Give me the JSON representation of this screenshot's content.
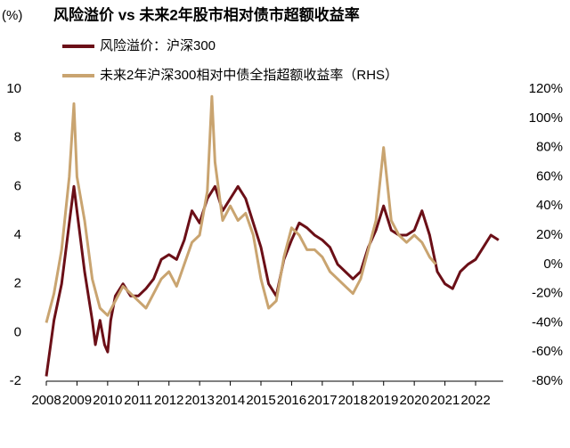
{
  "chart_data": {
    "type": "line",
    "title": "风险溢价 vs 未来2年股市相对债市超额收益率",
    "y_label": "(%)",
    "xlim": [
      2008,
      2022.9
    ],
    "xticks": [
      2008,
      2009,
      2010,
      2011,
      2012,
      2013,
      2014,
      2015,
      2016,
      2017,
      2018,
      2019,
      2020,
      2021,
      2022
    ],
    "ylim": [
      -2,
      10
    ],
    "yticks": [
      -2,
      0,
      2,
      4,
      6,
      8,
      10
    ],
    "y2lim": [
      -80,
      120
    ],
    "y2ticks": [
      {
        "value": -80,
        "label": "-80%"
      },
      {
        "value": -60,
        "label": "-60%"
      },
      {
        "value": -40,
        "label": "-40%"
      },
      {
        "value": -20,
        "label": "-20%"
      },
      {
        "value": 0,
        "label": "0%"
      },
      {
        "value": 20,
        "label": "20%"
      },
      {
        "value": 40,
        "label": "40%"
      },
      {
        "value": 60,
        "label": "60%"
      },
      {
        "value": 80,
        "label": "80%"
      },
      {
        "value": 100,
        "label": "100%"
      },
      {
        "value": 120,
        "label": "120%"
      }
    ],
    "series": [
      {
        "name": "风险溢价：沪深300",
        "color": "#6b0f17",
        "x": [
          2008.0,
          2008.25,
          2008.5,
          2008.75,
          2008.9,
          2009.0,
          2009.25,
          2009.5,
          2009.6,
          2009.75,
          2009.9,
          2010.0,
          2010.1,
          2010.25,
          2010.5,
          2010.75,
          2011.0,
          2011.25,
          2011.5,
          2011.75,
          2012.0,
          2012.25,
          2012.5,
          2012.75,
          2013.0,
          2013.25,
          2013.5,
          2013.75,
          2014.0,
          2014.25,
          2014.5,
          2014.75,
          2015.0,
          2015.25,
          2015.5,
          2015.75,
          2016.0,
          2016.25,
          2016.5,
          2016.75,
          2017.0,
          2017.25,
          2017.5,
          2017.75,
          2018.0,
          2018.25,
          2018.5,
          2018.75,
          2019.0,
          2019.25,
          2019.5,
          2019.75,
          2020.0,
          2020.25,
          2020.5,
          2020.75,
          2021.0,
          2021.25,
          2021.5,
          2021.75,
          2022.0,
          2022.25,
          2022.5,
          2022.75
        ],
        "values": [
          -1.8,
          0.5,
          2,
          4.5,
          6,
          5,
          2.5,
          0.5,
          -0.5,
          0.5,
          -0.5,
          -0.8,
          0.5,
          1.5,
          2,
          1.5,
          1.5,
          1.8,
          2.2,
          3,
          3.2,
          3,
          3.8,
          5,
          4.5,
          5.5,
          6,
          5,
          5.5,
          6,
          5.5,
          4.5,
          3.5,
          2,
          1.5,
          3,
          3.8,
          4.5,
          4.3,
          4,
          3.8,
          3.5,
          2.8,
          2.5,
          2.2,
          2.5,
          3.5,
          4.2,
          5.2,
          4.2,
          4,
          4,
          4.2,
          5,
          4,
          2.5,
          2,
          1.8,
          2.5,
          2.8,
          3,
          3.5,
          4,
          3.8
        ]
      },
      {
        "name": "未来2年沪深300相对中债全指超额收益率（RHS）",
        "color": "#c9a470",
        "axis": "y2",
        "x": [
          2008.0,
          2008.25,
          2008.5,
          2008.75,
          2008.9,
          2009.0,
          2009.25,
          2009.5,
          2009.75,
          2010.0,
          2010.25,
          2010.5,
          2010.75,
          2011.0,
          2011.25,
          2011.5,
          2011.75,
          2012.0,
          2012.25,
          2012.5,
          2012.75,
          2013.0,
          2013.25,
          2013.4,
          2013.5,
          2013.75,
          2014.0,
          2014.25,
          2014.5,
          2014.75,
          2015.0,
          2015.25,
          2015.5,
          2015.75,
          2016.0,
          2016.25,
          2016.5,
          2016.75,
          2017.0,
          2017.25,
          2017.5,
          2017.75,
          2018.0,
          2018.25,
          2018.5,
          2018.75,
          2019.0,
          2019.25,
          2019.5,
          2019.75,
          2020.0,
          2020.25,
          2020.5,
          2020.7
        ],
        "values": [
          -40,
          -20,
          10,
          60,
          110,
          60,
          30,
          -10,
          -30,
          -35,
          -25,
          -15,
          -20,
          -25,
          -30,
          -20,
          -10,
          -5,
          -15,
          0,
          15,
          20,
          50,
          115,
          70,
          30,
          40,
          30,
          35,
          20,
          -10,
          -30,
          -25,
          5,
          25,
          20,
          10,
          10,
          5,
          -5,
          -10,
          -15,
          -20,
          -10,
          10,
          30,
          80,
          30,
          20,
          15,
          20,
          15,
          5,
          0
        ]
      }
    ]
  }
}
